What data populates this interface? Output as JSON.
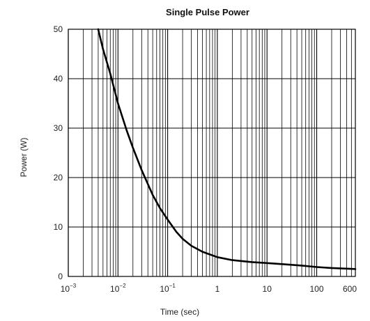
{
  "chart_data": {
    "type": "line",
    "title": "Single Pulse Power",
    "xlabel": "Time (sec)",
    "ylabel": "Power  (W)",
    "xscale": "log",
    "xlim": [
      0.001,
      600
    ],
    "ylim": [
      0,
      50
    ],
    "grid": true,
    "x_ticks": [
      {
        "value": 0.001,
        "base": "10",
        "exp": "−3"
      },
      {
        "value": 0.01,
        "base": "10",
        "exp": "−2"
      },
      {
        "value": 0.1,
        "base": "10",
        "exp": "−1"
      },
      {
        "value": 1,
        "base": "1",
        "exp": ""
      },
      {
        "value": 10,
        "base": "10",
        "exp": ""
      },
      {
        "value": 100,
        "base": "100",
        "exp": ""
      },
      {
        "value": 600,
        "base": "600",
        "exp": ""
      }
    ],
    "y_ticks": [
      0,
      10,
      20,
      30,
      40,
      50
    ],
    "series": [
      {
        "color": "#000000",
        "x": [
          0.004,
          0.005,
          0.007,
          0.01,
          0.015,
          0.02,
          0.03,
          0.05,
          0.07,
          0.1,
          0.15,
          0.2,
          0.3,
          0.5,
          1,
          2,
          5,
          10,
          20,
          50,
          100,
          200,
          600
        ],
        "y": [
          50,
          46,
          41,
          35,
          29.5,
          26,
          21.5,
          16.5,
          13.8,
          11.5,
          9,
          7.6,
          6.2,
          5,
          3.9,
          3.3,
          2.9,
          2.7,
          2.5,
          2.2,
          1.9,
          1.7,
          1.5
        ]
      }
    ]
  }
}
